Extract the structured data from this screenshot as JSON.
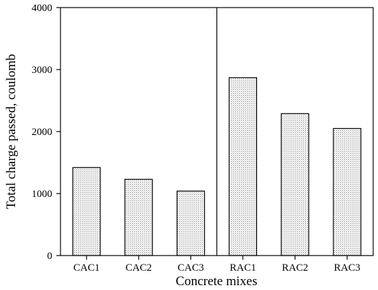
{
  "chart_data": {
    "type": "bar",
    "title": "",
    "xlabel": "Concrete mixes",
    "ylabel": "Total charge passed, coulomb",
    "categories": [
      "CAC1",
      "CAC2",
      "CAC3",
      "RAC1",
      "RAC2",
      "RAC3"
    ],
    "values": [
      1420,
      1230,
      1040,
      2870,
      2290,
      2050
    ],
    "ylim": [
      0,
      4000
    ],
    "yticks": [
      0,
      1000,
      2000,
      3000,
      4000
    ],
    "ytick_labels": [
      "0",
      "1000",
      "2000",
      "3000",
      "4000"
    ],
    "group_divider_after_index": 2,
    "grid": false,
    "legend": "none",
    "bar_fill": "dotted light gray"
  }
}
